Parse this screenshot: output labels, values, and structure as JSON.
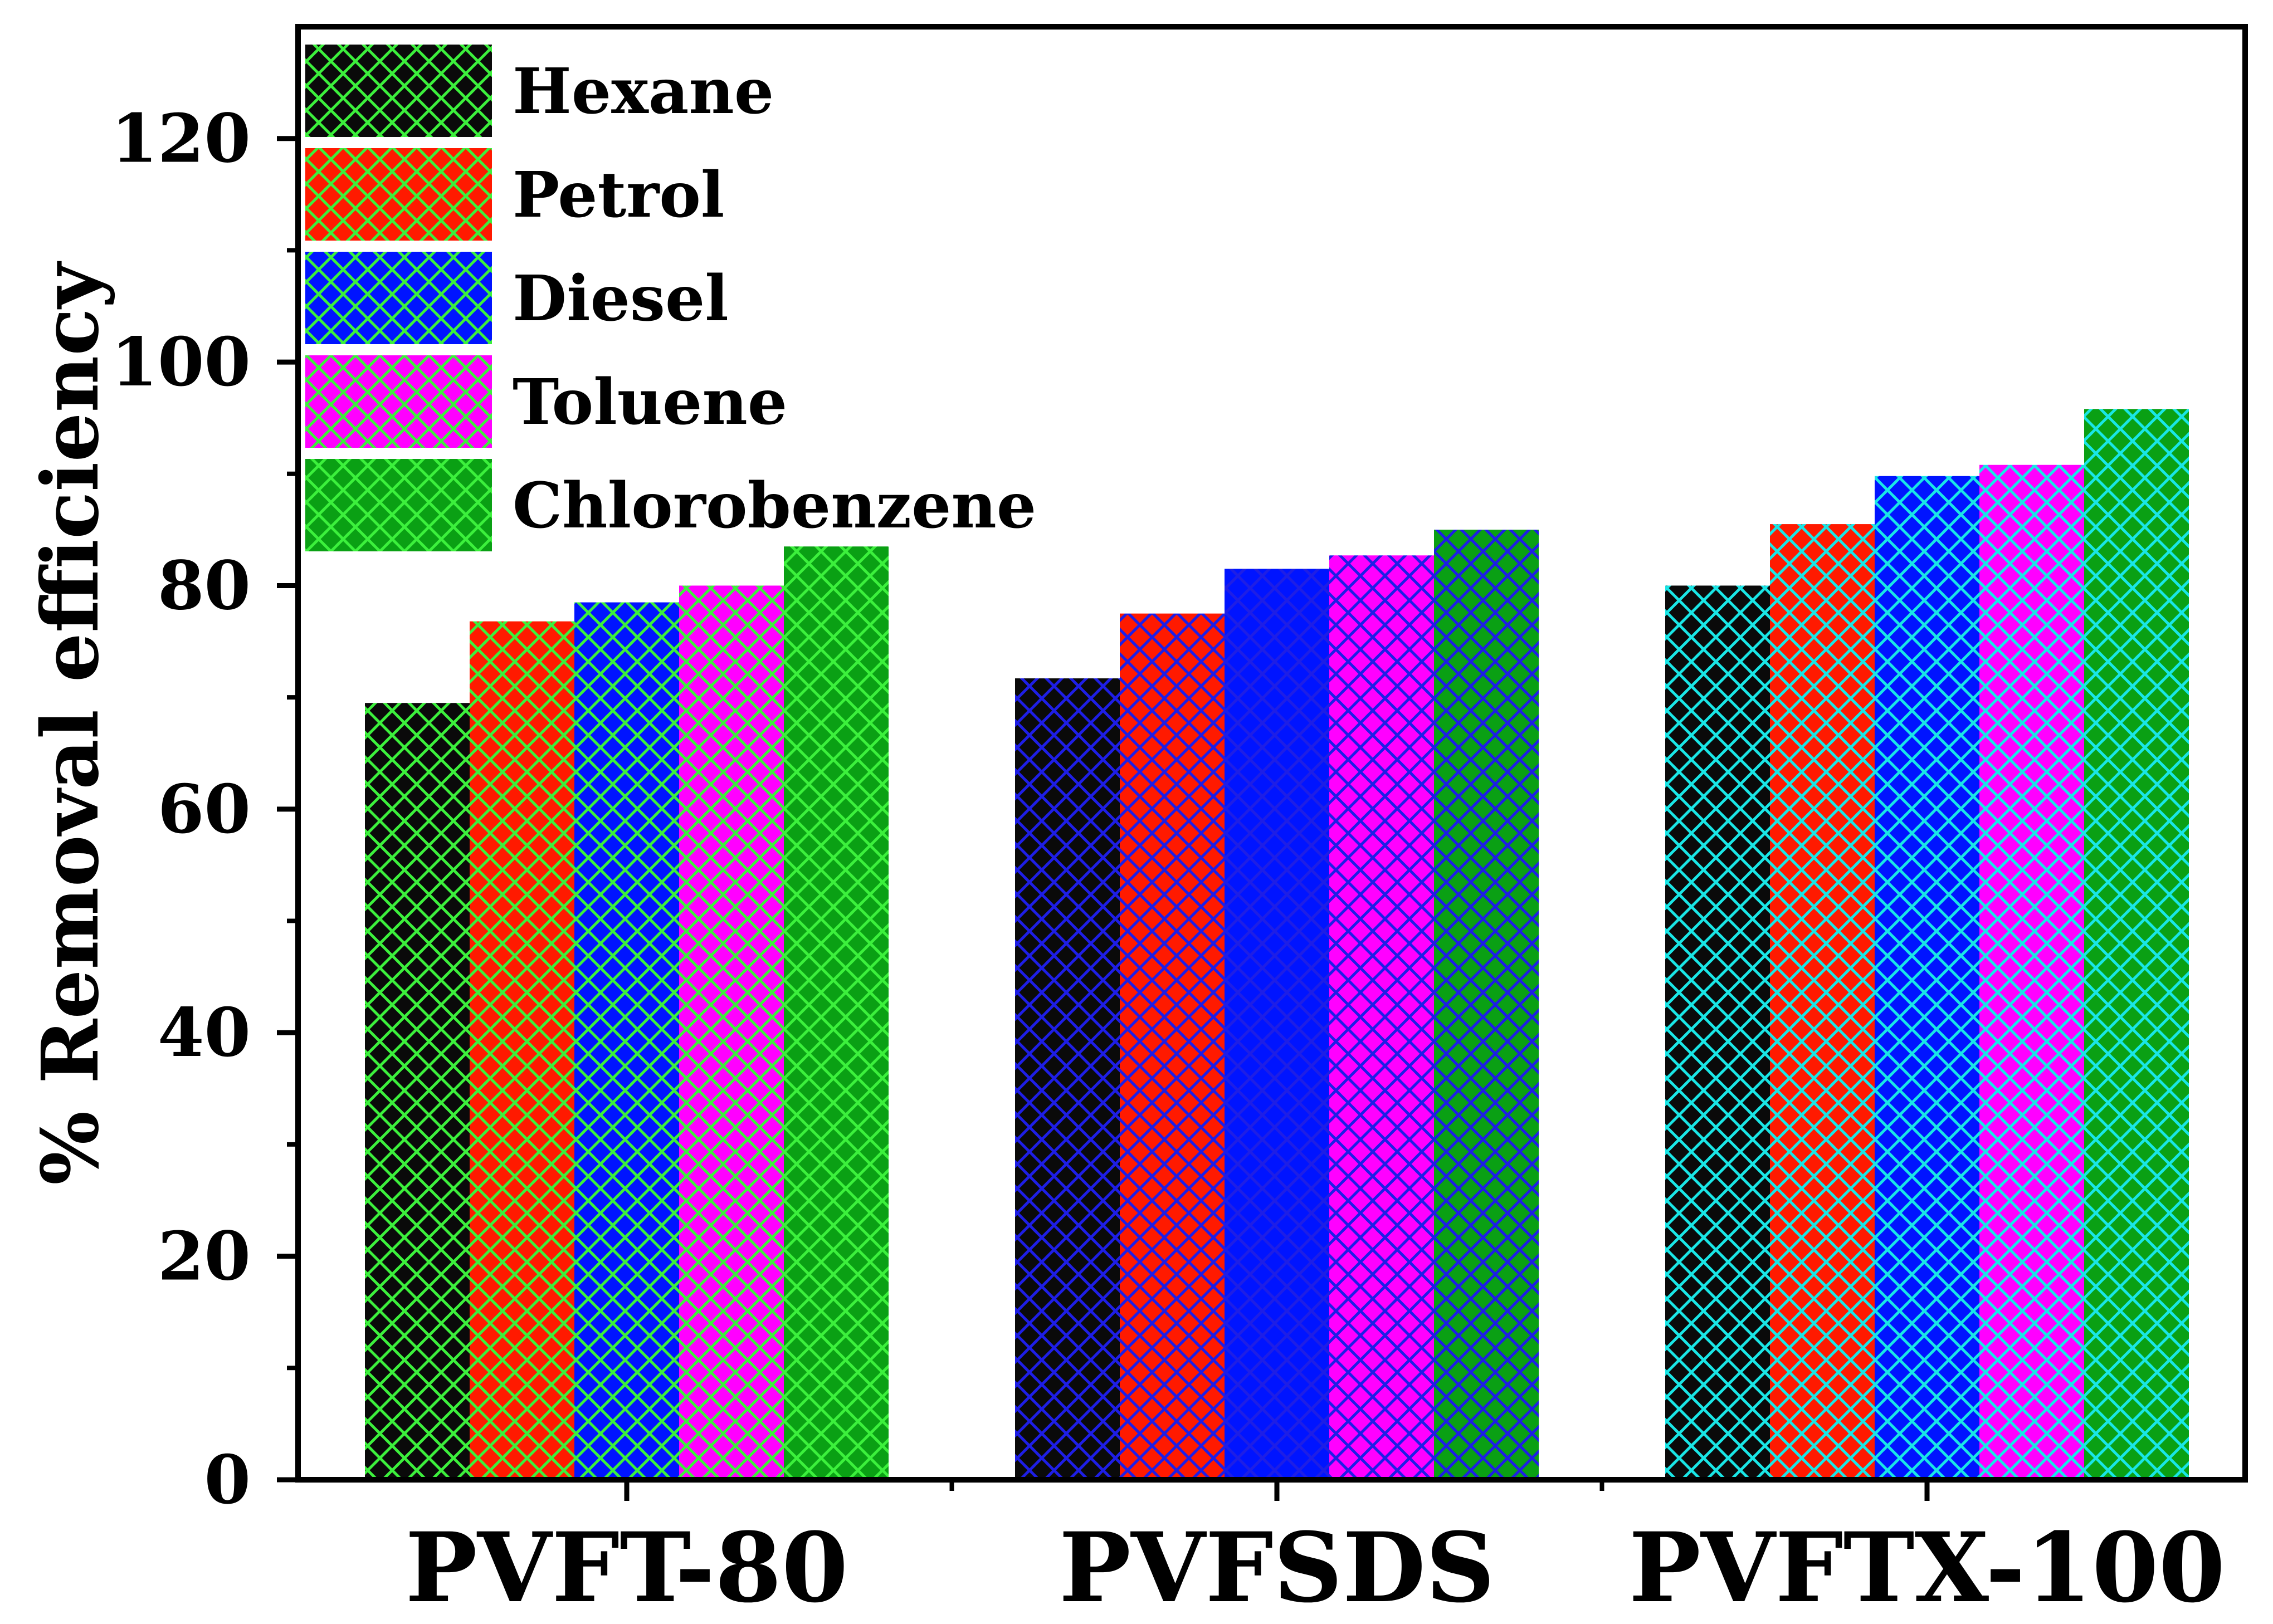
{
  "chart_data": {
    "type": "bar",
    "title": "",
    "xlabel": "",
    "ylabel": "% Removal efficiency",
    "ylim": [
      0,
      130
    ],
    "yticks": [
      0,
      20,
      40,
      60,
      80,
      100,
      120
    ],
    "categories": [
      "PVFT-80",
      "PVFSDS",
      "PVFTX-100"
    ],
    "series": [
      {
        "name": "Hexane",
        "values": [
          69.5,
          71.7,
          80
        ]
      },
      {
        "name": "Petrol",
        "values": [
          76.8,
          77.5,
          85.5
        ]
      },
      {
        "name": "Diesel",
        "values": [
          78.5,
          81.5,
          89.8
        ]
      },
      {
        "name": "Toluene",
        "values": [
          80,
          82.7,
          90.8
        ]
      },
      {
        "name": "Chlorobenzene",
        "values": [
          83.5,
          85,
          95.8
        ]
      }
    ],
    "legend_position": "top-left",
    "grid": false,
    "series_colors": [
      "#0a0a0a",
      "#ff1a00",
      "#0014ff",
      "#ff00ff",
      "#0aa014"
    ],
    "hatch_colors_by_category": [
      "#3cf03c",
      "#1e1ee6",
      "#19e6e6"
    ],
    "legend_hatch_color": "#3cf03c",
    "pattern": "crosshatch"
  }
}
